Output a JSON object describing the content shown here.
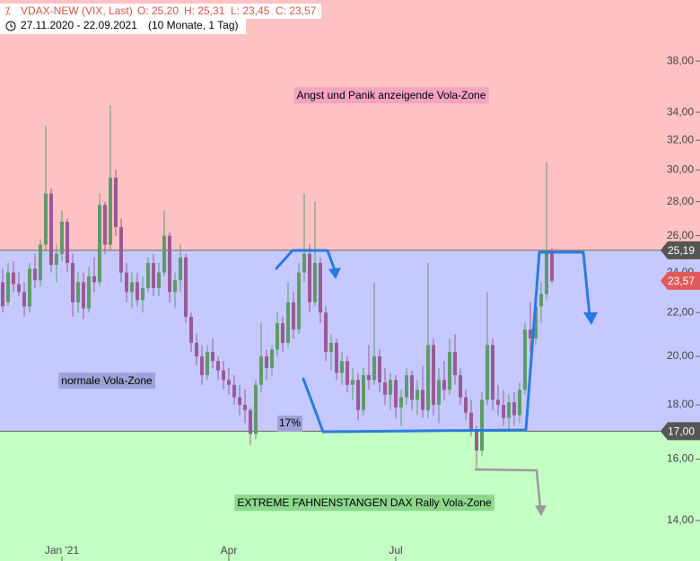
{
  "chart_data": {
    "type": "candlestick",
    "title": "VDAX-NEW (VIX, Last)",
    "ohlc_text": [
      "O: 25,20",
      "H: 25,31",
      "L: 23,45",
      "C: 23,57"
    ],
    "date_range": "27.11.2020 - 22.09.2021",
    "period": "(10 Monate, 1 Tag)",
    "log_scale": true,
    "ylim": [
      12.82,
      43.4
    ],
    "yticks": [
      {
        "value": 14,
        "label": "14,00"
      },
      {
        "value": 16,
        "label": "16,00"
      },
      {
        "value": 18,
        "label": "18,00"
      },
      {
        "value": 20,
        "label": "20,00"
      },
      {
        "value": 22,
        "label": "22,00"
      },
      {
        "value": 24,
        "label": "24,00"
      },
      {
        "value": 26,
        "label": "26,00"
      },
      {
        "value": 28,
        "label": "28,00"
      },
      {
        "value": 30,
        "label": "30,00"
      },
      {
        "value": 32,
        "label": "32,00"
      },
      {
        "value": 34,
        "label": "34,00"
      },
      {
        "value": 38,
        "label": "38,00"
      }
    ],
    "xlim": [
      -0.5,
      122
    ],
    "xticks": [
      {
        "value": 11,
        "label": "Jan '21"
      },
      {
        "value": 42,
        "label": "Apr"
      },
      {
        "value": 73,
        "label": "Jul"
      }
    ],
    "up_color": "#5f9a6a",
    "down_color": "#9a5a96",
    "open": [
      23.5,
      22.5,
      24.0,
      23.4,
      23.0,
      22.3,
      24.2,
      23.6,
      25.5,
      28.5,
      24.4,
      25.0,
      26.8,
      24.5,
      22.5,
      23.5,
      22.2,
      23.8,
      23.5,
      27.8,
      25.5,
      29.5,
      26.5,
      24.0,
      23.0,
      23.5,
      22.6,
      23.2,
      24.5,
      23.2,
      24.0,
      26.0,
      23.0,
      23.6,
      24.8,
      21.8,
      20.6,
      20.0,
      19.2,
      20.2,
      19.8,
      19.4,
      19.0,
      18.8,
      18.3,
      18.0,
      17.8,
      16.9,
      18.8,
      20.0,
      19.5,
      20.3,
      21.5,
      20.6,
      22.5,
      21.2,
      24.0,
      25.0,
      22.5,
      24.5,
      22.0,
      20.2,
      20.6,
      19.3,
      19.8,
      18.8,
      19.0,
      17.8,
      19.2,
      19.0,
      20.0,
      18.9,
      18.4,
      19.0,
      17.9,
      18.3,
      19.2,
      18.2,
      18.6,
      17.8,
      20.5,
      18.0,
      19.0,
      18.6,
      20.2,
      19.2,
      18.3,
      17.7,
      17.0,
      16.3,
      18.2,
      20.5,
      18.2,
      18.0,
      17.5,
      18.1,
      17.6,
      18.6,
      21.2,
      20.8,
      22.3,
      22.9,
      25.2
    ],
    "high": [
      24.2,
      24.5,
      24.6,
      24.0,
      23.5,
      24.5,
      25.0,
      25.8,
      33.0,
      28.8,
      25.5,
      27.5,
      27.0,
      25.0,
      24.0,
      24.0,
      24.3,
      24.8,
      28.5,
      28.0,
      34.5,
      30.0,
      27.0,
      24.5,
      24.0,
      24.0,
      23.8,
      24.8,
      25.0,
      24.5,
      27.5,
      26.2,
      24.0,
      25.5,
      25.0,
      22.0,
      21.0,
      20.5,
      20.5,
      20.8,
      20.0,
      19.8,
      19.5,
      19.2,
      18.8,
      18.6,
      17.9,
      19.0,
      21.5,
      20.3,
      20.5,
      22.0,
      21.8,
      23.5,
      23.0,
      24.5,
      28.5,
      25.5,
      28.0,
      24.8,
      22.3,
      21.0,
      20.8,
      20.2,
      20.0,
      19.5,
      19.3,
      19.5,
      20.5,
      23.5,
      20.3,
      19.5,
      19.3,
      19.2,
      18.6,
      19.5,
      19.4,
      19.0,
      19.6,
      24.5,
      20.8,
      19.5,
      19.8,
      20.8,
      21.0,
      19.5,
      18.6,
      18.2,
      17.2,
      18.5,
      23.0,
      20.8,
      18.8,
      18.6,
      18.4,
      18.5,
      18.9,
      21.5,
      22.5,
      22.8,
      23.5,
      30.5,
      25.31
    ],
    "low": [
      22.0,
      22.3,
      23.0,
      22.8,
      21.8,
      22.0,
      23.2,
      23.3,
      25.2,
      24.0,
      23.5,
      24.6,
      24.0,
      21.8,
      22.0,
      21.7,
      22.0,
      23.0,
      23.3,
      25.0,
      25.2,
      26.0,
      23.5,
      22.5,
      22.2,
      22.3,
      22.0,
      23.0,
      22.8,
      22.8,
      23.8,
      22.5,
      22.2,
      23.0,
      21.5,
      20.2,
      19.6,
      18.8,
      19.0,
      19.5,
      19.0,
      18.6,
      18.4,
      18.0,
      17.6,
      17.3,
      16.5,
      16.7,
      18.5,
      19.0,
      19.2,
      20.0,
      20.2,
      20.4,
      20.8,
      21.0,
      23.5,
      22.0,
      22.3,
      21.5,
      19.8,
      19.4,
      19.0,
      18.8,
      18.5,
      18.2,
      17.4,
      17.6,
      18.6,
      18.8,
      18.5,
      18.0,
      17.8,
      17.5,
      17.2,
      18.0,
      17.8,
      17.6,
      17.5,
      17.5,
      17.6,
      17.3,
      18.2,
      18.4,
      18.8,
      18.0,
      17.4,
      16.8,
      15.7,
      16.1,
      18.0,
      17.8,
      17.6,
      17.2,
      17.0,
      17.2,
      17.3,
      18.4,
      20.2,
      20.5,
      21.5,
      22.6,
      23.45
    ],
    "close": [
      22.3,
      24.0,
      23.4,
      23.0,
      22.3,
      24.2,
      23.6,
      25.5,
      28.5,
      24.4,
      25.0,
      26.8,
      24.5,
      22.5,
      23.5,
      22.2,
      23.8,
      23.5,
      27.8,
      25.5,
      29.5,
      26.5,
      24.0,
      23.0,
      23.5,
      22.6,
      23.2,
      24.5,
      23.2,
      24.0,
      26.0,
      23.0,
      23.6,
      24.8,
      21.8,
      20.6,
      20.0,
      19.2,
      20.2,
      19.8,
      19.4,
      19.0,
      18.8,
      18.3,
      18.0,
      17.8,
      16.9,
      18.8,
      20.0,
      19.5,
      20.3,
      21.5,
      20.6,
      22.5,
      21.2,
      24.0,
      25.0,
      22.5,
      24.5,
      22.0,
      20.2,
      20.6,
      19.3,
      19.8,
      18.8,
      19.0,
      17.8,
      19.2,
      19.0,
      20.0,
      18.9,
      18.4,
      19.0,
      17.9,
      18.3,
      19.2,
      18.2,
      18.6,
      17.8,
      20.5,
      18.0,
      19.0,
      18.6,
      20.2,
      19.2,
      18.3,
      17.7,
      17.0,
      16.3,
      18.2,
      20.5,
      18.2,
      18.0,
      17.5,
      18.1,
      17.6,
      18.6,
      21.2,
      20.8,
      22.3,
      22.9,
      25.2,
      23.57
    ],
    "levels": [
      {
        "value": 25.19,
        "label": "25,19",
        "color": "#555555"
      },
      {
        "value": 17.0,
        "label": "17,00",
        "color": "#555555"
      }
    ],
    "last": {
      "value": 23.57,
      "label": "23,57",
      "color": "#e05a5a"
    },
    "zones": [
      {
        "label": "Angst und Panik anzeigende Vola-Zone",
        "color": "#ffc2c2",
        "label_color": "#f4a3c4"
      },
      {
        "label": "normale Vola-Zone",
        "color": "#c6c9ff",
        "label_color": "#9ea2d8"
      },
      {
        "label": "EXTREME FAHNENSTANGEN DAX Rally Vola-Zone",
        "color": "#c4ffc4",
        "label_color": "#8ed88e"
      }
    ],
    "annotation": "17%"
  }
}
